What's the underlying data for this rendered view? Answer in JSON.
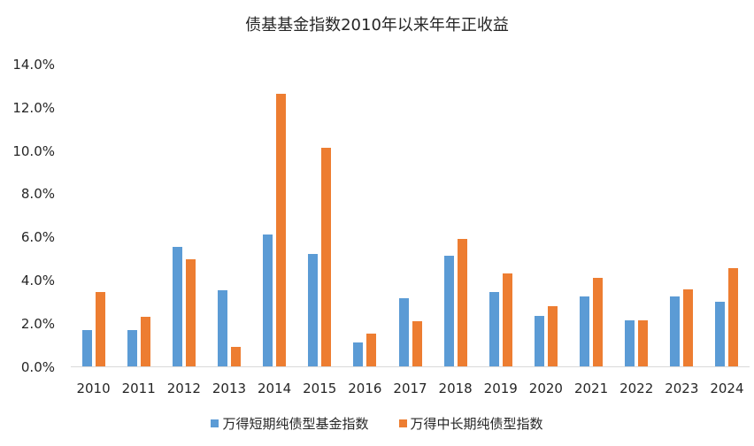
{
  "chart_data": {
    "type": "bar",
    "title": "债基基金指数2010年以来年年正收益",
    "xlabel": "",
    "ylabel": "",
    "ylim": [
      0,
      14
    ],
    "yticks": [
      "0.0%",
      "2.0%",
      "4.0%",
      "6.0%",
      "8.0%",
      "10.0%",
      "12.0%",
      "14.0%"
    ],
    "grid": false,
    "legend_position": "bottom",
    "categories": [
      "2010",
      "2011",
      "2012",
      "2013",
      "2014",
      "2015",
      "2016",
      "2017",
      "2018",
      "2019",
      "2020",
      "2021",
      "2022",
      "2023",
      "2024"
    ],
    "series": [
      {
        "name": "万得短期纯债型基金指数",
        "color": "#5b9bd5",
        "values": [
          1.69,
          1.71,
          5.54,
          3.53,
          6.11,
          5.21,
          1.13,
          3.18,
          5.13,
          3.45,
          2.34,
          3.25,
          2.15,
          3.26,
          3.01
        ]
      },
      {
        "name": "万得中长期纯债型指数",
        "color": "#ed7d31",
        "values": [
          3.48,
          2.33,
          4.99,
          0.91,
          12.63,
          10.13,
          1.54,
          2.12,
          5.92,
          4.32,
          2.82,
          4.12,
          2.15,
          3.6,
          4.58
        ]
      }
    ]
  }
}
